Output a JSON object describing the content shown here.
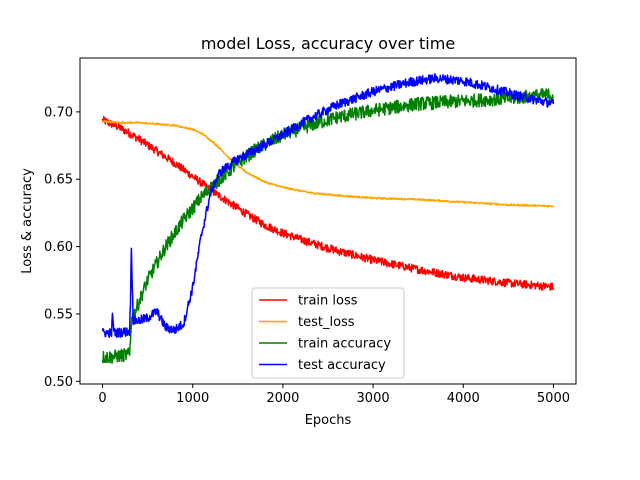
{
  "chart_data": {
    "type": "line",
    "title": "model Loss, accuracy over time",
    "xlabel": "Epochs",
    "ylabel": "Loss & accuracy",
    "xlim": [
      -250,
      5250
    ],
    "ylim": [
      0.498,
      0.74
    ],
    "xticks": [
      0,
      1000,
      2000,
      3000,
      4000,
      5000
    ],
    "xtick_labels": [
      "0",
      "1000",
      "2000",
      "3000",
      "4000",
      "5000"
    ],
    "yticks": [
      0.5,
      0.55,
      0.6,
      0.65,
      0.7
    ],
    "ytick_labels": [
      "0.50",
      "0.55",
      "0.60",
      "0.65",
      "0.70"
    ],
    "grid": false,
    "legend_position": "lower-center",
    "series": [
      {
        "name": "train loss",
        "color": "#ff0000",
        "noise": 0.003,
        "x": [
          0,
          200,
          400,
          600,
          800,
          1000,
          1200,
          1400,
          1600,
          1800,
          2000,
          2300,
          2600,
          3000,
          3500,
          4000,
          4500,
          5000
        ],
        "y": [
          0.694,
          0.688,
          0.68,
          0.671,
          0.662,
          0.652,
          0.642,
          0.633,
          0.624,
          0.616,
          0.61,
          0.603,
          0.597,
          0.59,
          0.583,
          0.577,
          0.573,
          0.57
        ]
      },
      {
        "name": "test_loss",
        "color": "#ffa500",
        "noise": 0.0006,
        "x": [
          0,
          200,
          400,
          600,
          800,
          1000,
          1100,
          1200,
          1300,
          1400,
          1500,
          1600,
          1800,
          2000,
          2300,
          2600,
          3000,
          3500,
          4000,
          4500,
          5000
        ],
        "y": [
          0.693,
          0.692,
          0.692,
          0.691,
          0.69,
          0.687,
          0.684,
          0.679,
          0.673,
          0.666,
          0.66,
          0.655,
          0.648,
          0.644,
          0.64,
          0.638,
          0.636,
          0.635,
          0.633,
          0.631,
          0.63
        ]
      },
      {
        "name": "train accuracy",
        "color": "#008000",
        "noise": 0.005,
        "x": [
          0,
          100,
          300,
          320,
          500,
          700,
          900,
          1100,
          1300,
          1500,
          1700,
          2000,
          2300,
          2600,
          3000,
          3500,
          4000,
          4500,
          5000
        ],
        "y": [
          0.518,
          0.518,
          0.52,
          0.545,
          0.575,
          0.6,
          0.62,
          0.637,
          0.65,
          0.662,
          0.672,
          0.683,
          0.69,
          0.696,
          0.701,
          0.706,
          0.708,
          0.71,
          0.713
        ]
      },
      {
        "name": "test  accuracy",
        "color": "#0000ff",
        "noise": 0.0035,
        "x": [
          0,
          100,
          110,
          130,
          150,
          300,
          310,
          320,
          340,
          400,
          500,
          600,
          700,
          800,
          900,
          1000,
          1100,
          1200,
          1300,
          1400,
          1500,
          1700,
          2000,
          2300,
          2600,
          3000,
          3400,
          3700,
          4000,
          4300,
          4600,
          5000
        ],
        "y": [
          0.536,
          0.536,
          0.548,
          0.536,
          0.536,
          0.537,
          0.56,
          0.6,
          0.545,
          0.545,
          0.547,
          0.552,
          0.54,
          0.538,
          0.543,
          0.57,
          0.61,
          0.64,
          0.655,
          0.66,
          0.665,
          0.672,
          0.683,
          0.695,
          0.705,
          0.715,
          0.722,
          0.725,
          0.723,
          0.718,
          0.712,
          0.706
        ]
      }
    ]
  }
}
